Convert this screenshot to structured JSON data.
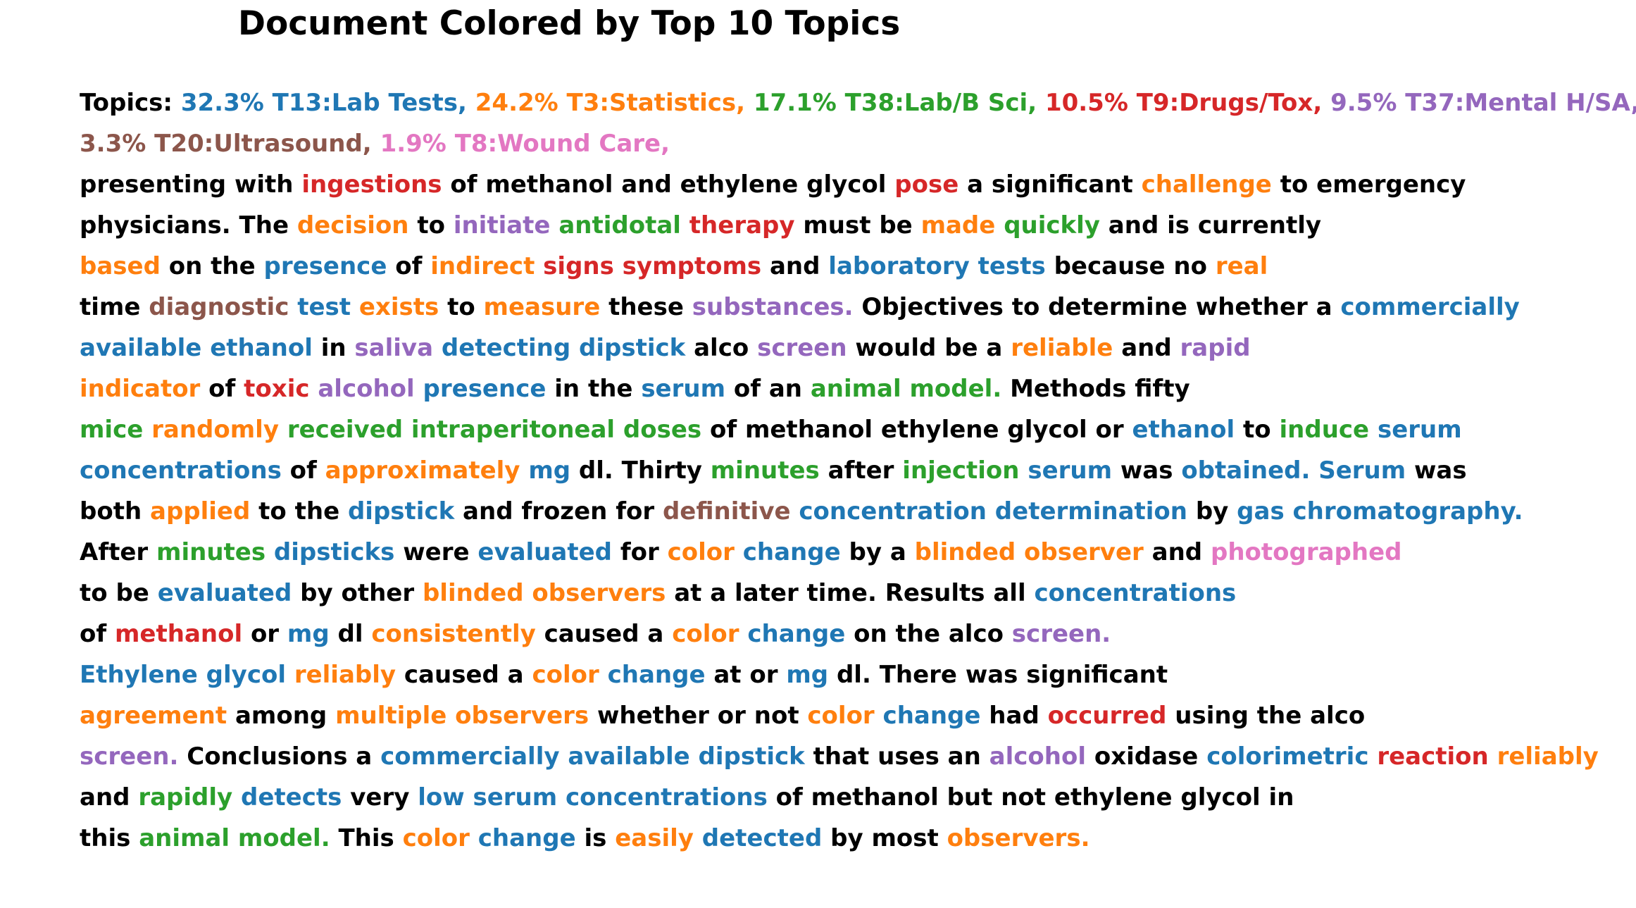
{
  "title": "Document Colored by Top 10 Topics",
  "colors": {
    "k": "#000000",
    "b": "#1f77b4",
    "o": "#ff7f0e",
    "g": "#2ca02c",
    "r": "#d62728",
    "p": "#9467bd",
    "n": "#8c564b",
    "m": "#e377c2"
  },
  "lines": [
    [
      [
        "k",
        "Topics: "
      ],
      [
        "b",
        "32.3% T13:Lab Tests, "
      ],
      [
        "o",
        "24.2% T3:Statistics, "
      ],
      [
        "g",
        "17.1% T38:Lab/B Sci, "
      ],
      [
        "r",
        "10.5% T9:Drugs/Tox, "
      ],
      [
        "p",
        "9.5% T37:Mental H/SA,"
      ]
    ],
    [
      [
        "n",
        "3.3% T20:Ultrasound, "
      ],
      [
        "m",
        "1.9% T8:Wound Care,"
      ]
    ],
    [
      [
        "k",
        "presenting with "
      ],
      [
        "r",
        "ingestions"
      ],
      [
        "k",
        " of methanol and ethylene glycol "
      ],
      [
        "r",
        "pose"
      ],
      [
        "k",
        " a significant "
      ],
      [
        "o",
        "challenge"
      ],
      [
        "k",
        " to emergency"
      ]
    ],
    [
      [
        "k",
        "physicians. The "
      ],
      [
        "o",
        "decision"
      ],
      [
        "k",
        " to "
      ],
      [
        "p",
        "initiate"
      ],
      [
        "k",
        " "
      ],
      [
        "g",
        "antidotal"
      ],
      [
        "k",
        " "
      ],
      [
        "r",
        "therapy"
      ],
      [
        "k",
        " must be "
      ],
      [
        "o",
        "made"
      ],
      [
        "k",
        " "
      ],
      [
        "g",
        "quickly"
      ],
      [
        "k",
        " and is currently"
      ]
    ],
    [
      [
        "o",
        "based"
      ],
      [
        "k",
        " on the "
      ],
      [
        "b",
        "presence"
      ],
      [
        "k",
        " of "
      ],
      [
        "o",
        "indirect"
      ],
      [
        "k",
        " "
      ],
      [
        "r",
        "signs symptoms"
      ],
      [
        "k",
        " and "
      ],
      [
        "b",
        "laboratory tests"
      ],
      [
        "k",
        " because no "
      ],
      [
        "o",
        "real"
      ]
    ],
    [
      [
        "k",
        "time "
      ],
      [
        "n",
        "diagnostic"
      ],
      [
        "k",
        " "
      ],
      [
        "b",
        "test"
      ],
      [
        "k",
        " "
      ],
      [
        "o",
        "exists"
      ],
      [
        "k",
        " to "
      ],
      [
        "o",
        "measure"
      ],
      [
        "k",
        " these "
      ],
      [
        "p",
        "substances."
      ],
      [
        "k",
        " Objectives to determine whether a "
      ],
      [
        "b",
        "commercially"
      ]
    ],
    [
      [
        "b",
        "available ethanol"
      ],
      [
        "k",
        " in "
      ],
      [
        "p",
        "saliva"
      ],
      [
        "k",
        " "
      ],
      [
        "b",
        "detecting dipstick"
      ],
      [
        "k",
        " alco "
      ],
      [
        "p",
        "screen"
      ],
      [
        "k",
        " would be a "
      ],
      [
        "o",
        "reliable"
      ],
      [
        "k",
        " and "
      ],
      [
        "p",
        "rapid"
      ]
    ],
    [
      [
        "o",
        "indicator"
      ],
      [
        "k",
        " of "
      ],
      [
        "r",
        "toxic"
      ],
      [
        "k",
        " "
      ],
      [
        "p",
        "alcohol"
      ],
      [
        "k",
        " "
      ],
      [
        "b",
        "presence"
      ],
      [
        "k",
        " in the "
      ],
      [
        "b",
        "serum"
      ],
      [
        "k",
        " of an "
      ],
      [
        "g",
        "animal model."
      ],
      [
        "k",
        " Methods fifty"
      ]
    ],
    [
      [
        "g",
        "mice"
      ],
      [
        "k",
        " "
      ],
      [
        "o",
        "randomly"
      ],
      [
        "k",
        " "
      ],
      [
        "g",
        "received intraperitoneal doses"
      ],
      [
        "k",
        " of methanol ethylene glycol or "
      ],
      [
        "b",
        "ethanol"
      ],
      [
        "k",
        " to "
      ],
      [
        "g",
        "induce"
      ],
      [
        "k",
        " "
      ],
      [
        "b",
        "serum"
      ]
    ],
    [
      [
        "b",
        "concentrations"
      ],
      [
        "k",
        " of "
      ],
      [
        "o",
        "approximately"
      ],
      [
        "k",
        " "
      ],
      [
        "b",
        "mg"
      ],
      [
        "k",
        " dl. Thirty "
      ],
      [
        "g",
        "minutes"
      ],
      [
        "k",
        " after "
      ],
      [
        "g",
        "injection"
      ],
      [
        "k",
        " "
      ],
      [
        "b",
        "serum"
      ],
      [
        "k",
        " was "
      ],
      [
        "b",
        "obtained. Serum"
      ],
      [
        "k",
        " was"
      ]
    ],
    [
      [
        "k",
        "both "
      ],
      [
        "o",
        "applied"
      ],
      [
        "k",
        " to the "
      ],
      [
        "b",
        "dipstick"
      ],
      [
        "k",
        " and frozen for "
      ],
      [
        "n",
        "definitive"
      ],
      [
        "k",
        " "
      ],
      [
        "b",
        "concentration determination"
      ],
      [
        "k",
        " by "
      ],
      [
        "b",
        "gas chromatography."
      ]
    ],
    [
      [
        "k",
        "After "
      ],
      [
        "g",
        "minutes"
      ],
      [
        "k",
        " "
      ],
      [
        "b",
        "dipsticks"
      ],
      [
        "k",
        " were "
      ],
      [
        "b",
        "evaluated"
      ],
      [
        "k",
        " for "
      ],
      [
        "o",
        "color"
      ],
      [
        "k",
        " "
      ],
      [
        "b",
        "change"
      ],
      [
        "k",
        " by a "
      ],
      [
        "o",
        "blinded observer"
      ],
      [
        "k",
        " and "
      ],
      [
        "m",
        "photographed"
      ]
    ],
    [
      [
        "k",
        "to be "
      ],
      [
        "b",
        "evaluated"
      ],
      [
        "k",
        " by other "
      ],
      [
        "o",
        "blinded observers"
      ],
      [
        "k",
        " at a later time. Results all "
      ],
      [
        "b",
        "concentrations"
      ]
    ],
    [
      [
        "k",
        "of "
      ],
      [
        "r",
        "methanol"
      ],
      [
        "k",
        " or "
      ],
      [
        "b",
        "mg"
      ],
      [
        "k",
        " dl "
      ],
      [
        "o",
        "consistently"
      ],
      [
        "k",
        " caused a "
      ],
      [
        "o",
        "color"
      ],
      [
        "k",
        " "
      ],
      [
        "b",
        "change"
      ],
      [
        "k",
        " on the alco "
      ],
      [
        "p",
        "screen."
      ]
    ],
    [
      [
        "b",
        "Ethylene glycol"
      ],
      [
        "k",
        " "
      ],
      [
        "o",
        "reliably"
      ],
      [
        "k",
        " caused a "
      ],
      [
        "o",
        "color"
      ],
      [
        "k",
        " "
      ],
      [
        "b",
        "change"
      ],
      [
        "k",
        " at or "
      ],
      [
        "b",
        "mg"
      ],
      [
        "k",
        " dl. There was significant"
      ]
    ],
    [
      [
        "o",
        "agreement"
      ],
      [
        "k",
        " among "
      ],
      [
        "o",
        "multiple observers"
      ],
      [
        "k",
        " whether or not "
      ],
      [
        "o",
        "color"
      ],
      [
        "k",
        " "
      ],
      [
        "b",
        "change"
      ],
      [
        "k",
        " had "
      ],
      [
        "r",
        "occurred"
      ],
      [
        "k",
        " using the alco"
      ]
    ],
    [
      [
        "p",
        "screen."
      ],
      [
        "k",
        " Conclusions a "
      ],
      [
        "b",
        "commercially available dipstick"
      ],
      [
        "k",
        " that uses an "
      ],
      [
        "p",
        "alcohol"
      ],
      [
        "k",
        " oxidase "
      ],
      [
        "b",
        "colorimetric"
      ],
      [
        "k",
        " "
      ],
      [
        "r",
        "reaction"
      ],
      [
        "k",
        " "
      ],
      [
        "o",
        "reliably"
      ]
    ],
    [
      [
        "k",
        "and "
      ],
      [
        "g",
        "rapidly"
      ],
      [
        "k",
        " "
      ],
      [
        "b",
        "detects"
      ],
      [
        "k",
        " very "
      ],
      [
        "b",
        "low serum concentrations"
      ],
      [
        "k",
        " of methanol but not ethylene glycol in"
      ]
    ],
    [
      [
        "k",
        "this "
      ],
      [
        "g",
        "animal model."
      ],
      [
        "k",
        " This "
      ],
      [
        "o",
        "color"
      ],
      [
        "k",
        " "
      ],
      [
        "b",
        "change"
      ],
      [
        "k",
        " is "
      ],
      [
        "o",
        "easily"
      ],
      [
        "k",
        " "
      ],
      [
        "b",
        "detected"
      ],
      [
        "k",
        " by most "
      ],
      [
        "o",
        "observers."
      ]
    ]
  ]
}
